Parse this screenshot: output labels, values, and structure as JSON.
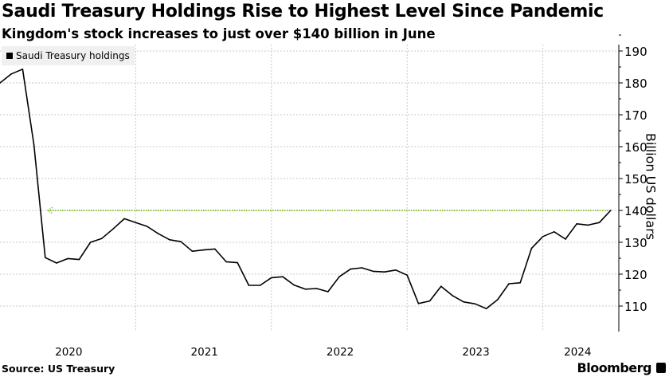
{
  "chart_data": {
    "type": "line",
    "title": "Saudi Treasury Holdings Rise to Highest Level Since Pandemic",
    "subtitle": "Kingdom's stock increases to just over $140 billion in June",
    "ylabel": "Billion US dollars",
    "xlabel": "",
    "source": "Source: US Treasury",
    "brand": "Bloomberg",
    "ylim": [
      102,
      192
    ],
    "yticks": [
      110,
      120,
      130,
      140,
      150,
      160,
      170,
      180,
      190
    ],
    "xtick_labels": [
      "2020",
      "2021",
      "2022",
      "2023",
      "2024"
    ],
    "grid": true,
    "legend_position": "top-left",
    "reference_line": {
      "value": 140,
      "color": "#8cc63f",
      "style": "dotted with arrow"
    },
    "x": [
      "2019-12",
      "2020-01",
      "2020-02",
      "2020-03",
      "2020-04",
      "2020-05",
      "2020-06",
      "2020-07",
      "2020-08",
      "2020-09",
      "2020-10",
      "2020-11",
      "2020-12",
      "2021-01",
      "2021-02",
      "2021-03",
      "2021-04",
      "2021-05",
      "2021-06",
      "2021-07",
      "2021-08",
      "2021-09",
      "2021-10",
      "2021-11",
      "2021-12",
      "2022-01",
      "2022-02",
      "2022-03",
      "2022-04",
      "2022-05",
      "2022-06",
      "2022-07",
      "2022-08",
      "2022-09",
      "2022-10",
      "2022-11",
      "2022-12",
      "2023-01",
      "2023-02",
      "2023-03",
      "2023-04",
      "2023-05",
      "2023-06",
      "2023-07",
      "2023-08",
      "2023-09",
      "2023-10",
      "2023-11",
      "2023-12",
      "2024-01",
      "2024-02",
      "2024-03",
      "2024-04",
      "2024-05",
      "2024-06"
    ],
    "series": [
      {
        "name": "Saudi Treasury holdings",
        "color": "#000000",
        "values": [
          180.0,
          182.8,
          184.3,
          160.6,
          125.2,
          123.5,
          124.9,
          124.6,
          130.0,
          131.2,
          134.2,
          137.4,
          136.2,
          135.0,
          132.7,
          130.8,
          130.2,
          127.2,
          127.6,
          127.9,
          123.9,
          123.6,
          116.5,
          116.5,
          118.9,
          119.2,
          116.6,
          115.3,
          115.5,
          114.5,
          119.2,
          121.6,
          122.0,
          120.9,
          120.7,
          121.3,
          119.7,
          110.8,
          111.6,
          116.2,
          113.3,
          111.3,
          110.7,
          109.2,
          112.0,
          117.0,
          117.3,
          128.1,
          131.8,
          133.3,
          131.0,
          135.8,
          135.4,
          136.2,
          140.0
        ]
      }
    ]
  }
}
